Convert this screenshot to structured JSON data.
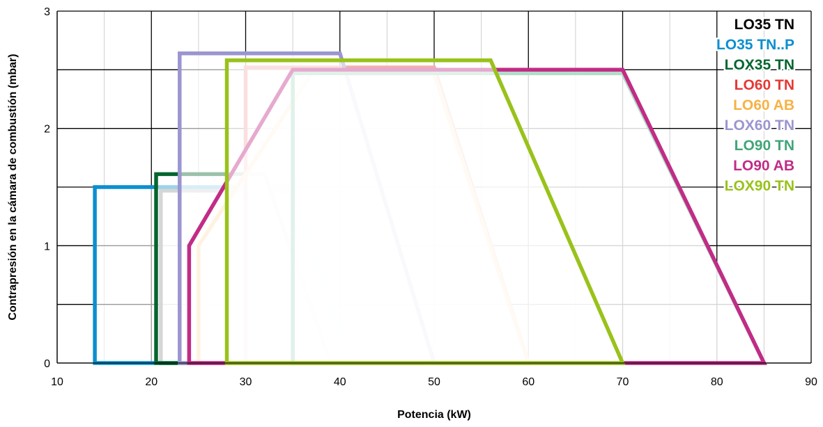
{
  "chart_data": {
    "type": "area",
    "xlabel": "Potencia (kW)",
    "ylabel": "Contrapresión en la cámara de combustión (mbar)",
    "xlim": [
      10,
      90
    ],
    "ylim": [
      0,
      3
    ],
    "x_ticks": [
      10,
      20,
      30,
      40,
      50,
      60,
      70,
      80,
      90
    ],
    "x_tick_labels": [
      "10",
      "20",
      "30",
      "40",
      "50",
      "60",
      "70",
      "80",
      "90"
    ],
    "y_ticks": [
      0,
      1,
      2,
      3
    ],
    "y_tick_labels": [
      "0",
      "1",
      "2",
      "3"
    ],
    "grid": {
      "x_minor_step": 5,
      "y_minor_step": 0.5,
      "shown": true
    },
    "legend_position": "top-right",
    "series": [
      {
        "name": "LO35 TN",
        "color": "#000000",
        "points": [
          [
            21,
            0
          ],
          [
            21,
            1.47
          ],
          [
            35,
            1.47
          ],
          [
            40.5,
            0
          ]
        ]
      },
      {
        "name": "LO35 TN..P",
        "color": "#0b8fd0",
        "points": [
          [
            14,
            0
          ],
          [
            14,
            1.5
          ],
          [
            35,
            1.5
          ],
          [
            41,
            0
          ]
        ]
      },
      {
        "name": "LOX35 TN",
        "color": "#05652f",
        "points": [
          [
            20.5,
            0
          ],
          [
            20.5,
            1.61
          ],
          [
            32,
            1.61
          ],
          [
            39,
            0
          ]
        ]
      },
      {
        "name": "LO60 TN",
        "color": "#e53935",
        "points": [
          [
            30,
            0
          ],
          [
            30,
            2.52
          ],
          [
            50,
            2.52
          ],
          [
            60,
            0
          ]
        ]
      },
      {
        "name": "LO60 AB",
        "color": "#f7b245",
        "points": [
          [
            25,
            0
          ],
          [
            25,
            1.0
          ],
          [
            37,
            2.47
          ],
          [
            50,
            2.47
          ],
          [
            60,
            0
          ]
        ]
      },
      {
        "name": "LOX60 TN",
        "color": "#9b95d0",
        "points": [
          [
            23,
            0
          ],
          [
            23,
            2.64
          ],
          [
            40,
            2.64
          ],
          [
            50,
            0
          ]
        ]
      },
      {
        "name": "LO90 TN",
        "color": "#42a578",
        "points": [
          [
            35,
            0
          ],
          [
            35,
            2.47
          ],
          [
            70,
            2.47
          ],
          [
            85,
            0
          ]
        ]
      },
      {
        "name": "LO90 AB",
        "color": "#c12c86",
        "points": [
          [
            24,
            0
          ],
          [
            24,
            1.0
          ],
          [
            35,
            2.5
          ],
          [
            70,
            2.5
          ],
          [
            85,
            0
          ]
        ]
      },
      {
        "name": "LOX90 TN",
        "color": "#99c21a",
        "points": [
          [
            28,
            0
          ],
          [
            28,
            2.58
          ],
          [
            56,
            2.58
          ],
          [
            70,
            0
          ]
        ]
      }
    ]
  }
}
